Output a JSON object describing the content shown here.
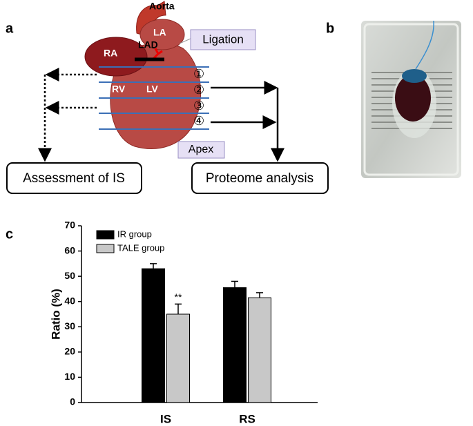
{
  "diagram": {
    "label": "a",
    "aorta": "Aorta",
    "la": "LA",
    "ra": "RA",
    "lad": "LAD",
    "rv": "RV",
    "lv": "LV",
    "ligation": "Ligation",
    "apex": "Apex",
    "slices": [
      "①",
      "②",
      "③",
      "④"
    ],
    "assessment": "Assessment of IS",
    "proteome": "Proteome analysis"
  },
  "photo": {
    "label": "b"
  },
  "chart_label": "c",
  "chart_data": {
    "type": "bar",
    "ylabel": "Ratio (%)",
    "categories": [
      "IS",
      "RS"
    ],
    "series": [
      {
        "name": "IR group",
        "color": "#000000",
        "values": [
          53,
          45.5
        ],
        "errors": [
          2,
          2.5
        ]
      },
      {
        "name": "TALE group",
        "color": "#c8c8c8",
        "values": [
          35,
          41.5
        ],
        "errors": [
          4,
          2
        ]
      }
    ],
    "ylim": [
      0,
      70
    ],
    "yticks": [
      0,
      10,
      20,
      30,
      40,
      50,
      60,
      70
    ],
    "legend": "upper left",
    "annotations": [
      {
        "text": "**",
        "category": "IS",
        "series": "TALE group"
      }
    ]
  }
}
